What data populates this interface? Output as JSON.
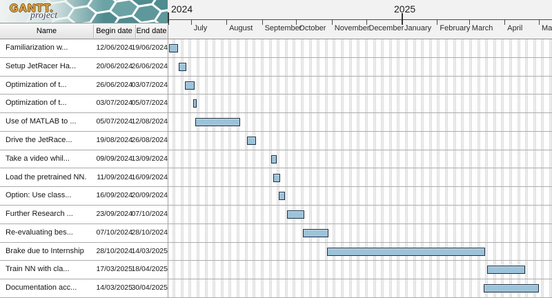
{
  "branding": {
    "logo_main": "GANTT.",
    "logo_sub": "project"
  },
  "table": {
    "columns": [
      {
        "label": "Name"
      },
      {
        "label": "Begin date"
      },
      {
        "label": "End date"
      }
    ],
    "tasks": [
      {
        "name": "Familiarization w...",
        "begin": "12/06/2024",
        "end": "19/06/2024"
      },
      {
        "name": "Setup JetRacer Ha...",
        "begin": "20/06/2024",
        "end": "26/06/2024"
      },
      {
        "name": "Optimization of t...",
        "begin": "26/06/2024",
        "end": "03/07/2024"
      },
      {
        "name": "Optimization of t...",
        "begin": "03/07/2024",
        "end": "05/07/2024"
      },
      {
        "name": "Use of MATLAB to ...",
        "begin": "05/07/2024",
        "end": "12/08/2024"
      },
      {
        "name": "Drive the JetRace...",
        "begin": "19/08/2024",
        "end": "26/08/2024"
      },
      {
        "name": "Take a video whil...",
        "begin": "09/09/2024",
        "end": "13/09/2024"
      },
      {
        "name": "Load the pretrained NN.",
        "begin": "11/09/2024",
        "end": "16/09/2024"
      },
      {
        "name": "Option: Use class...",
        "begin": "16/09/2024",
        "end": "20/09/2024"
      },
      {
        "name": "Further Research ...",
        "begin": "23/09/2024",
        "end": "07/10/2024"
      },
      {
        "name": "Re-evaluating bes...",
        "begin": "07/10/2024",
        "end": "28/10/2024"
      },
      {
        "name": "Brake due to Internship",
        "begin": "28/10/2024",
        "end": "14/03/2025"
      },
      {
        "name": "Train NN with cla...",
        "begin": "17/03/2025",
        "end": "18/04/2025"
      },
      {
        "name": "Documentation acc...",
        "begin": "14/03/2025",
        "end": "30/04/2025"
      }
    ]
  },
  "timeline": {
    "years": [
      {
        "label": "2024"
      },
      {
        "label": "2025"
      }
    ],
    "months": [
      "July",
      "August",
      "September",
      "October",
      "November",
      "December",
      "January",
      "February",
      "March",
      "April",
      "May"
    ]
  },
  "colors": {
    "bar_fill": "#9dc3d9",
    "bar_border": "#1b2f42",
    "weekend_stripe": "#ececec",
    "banner_teal": "#4e8c90",
    "logo_orange": "#eca63e",
    "logo_slate": "#3e3e52"
  }
}
